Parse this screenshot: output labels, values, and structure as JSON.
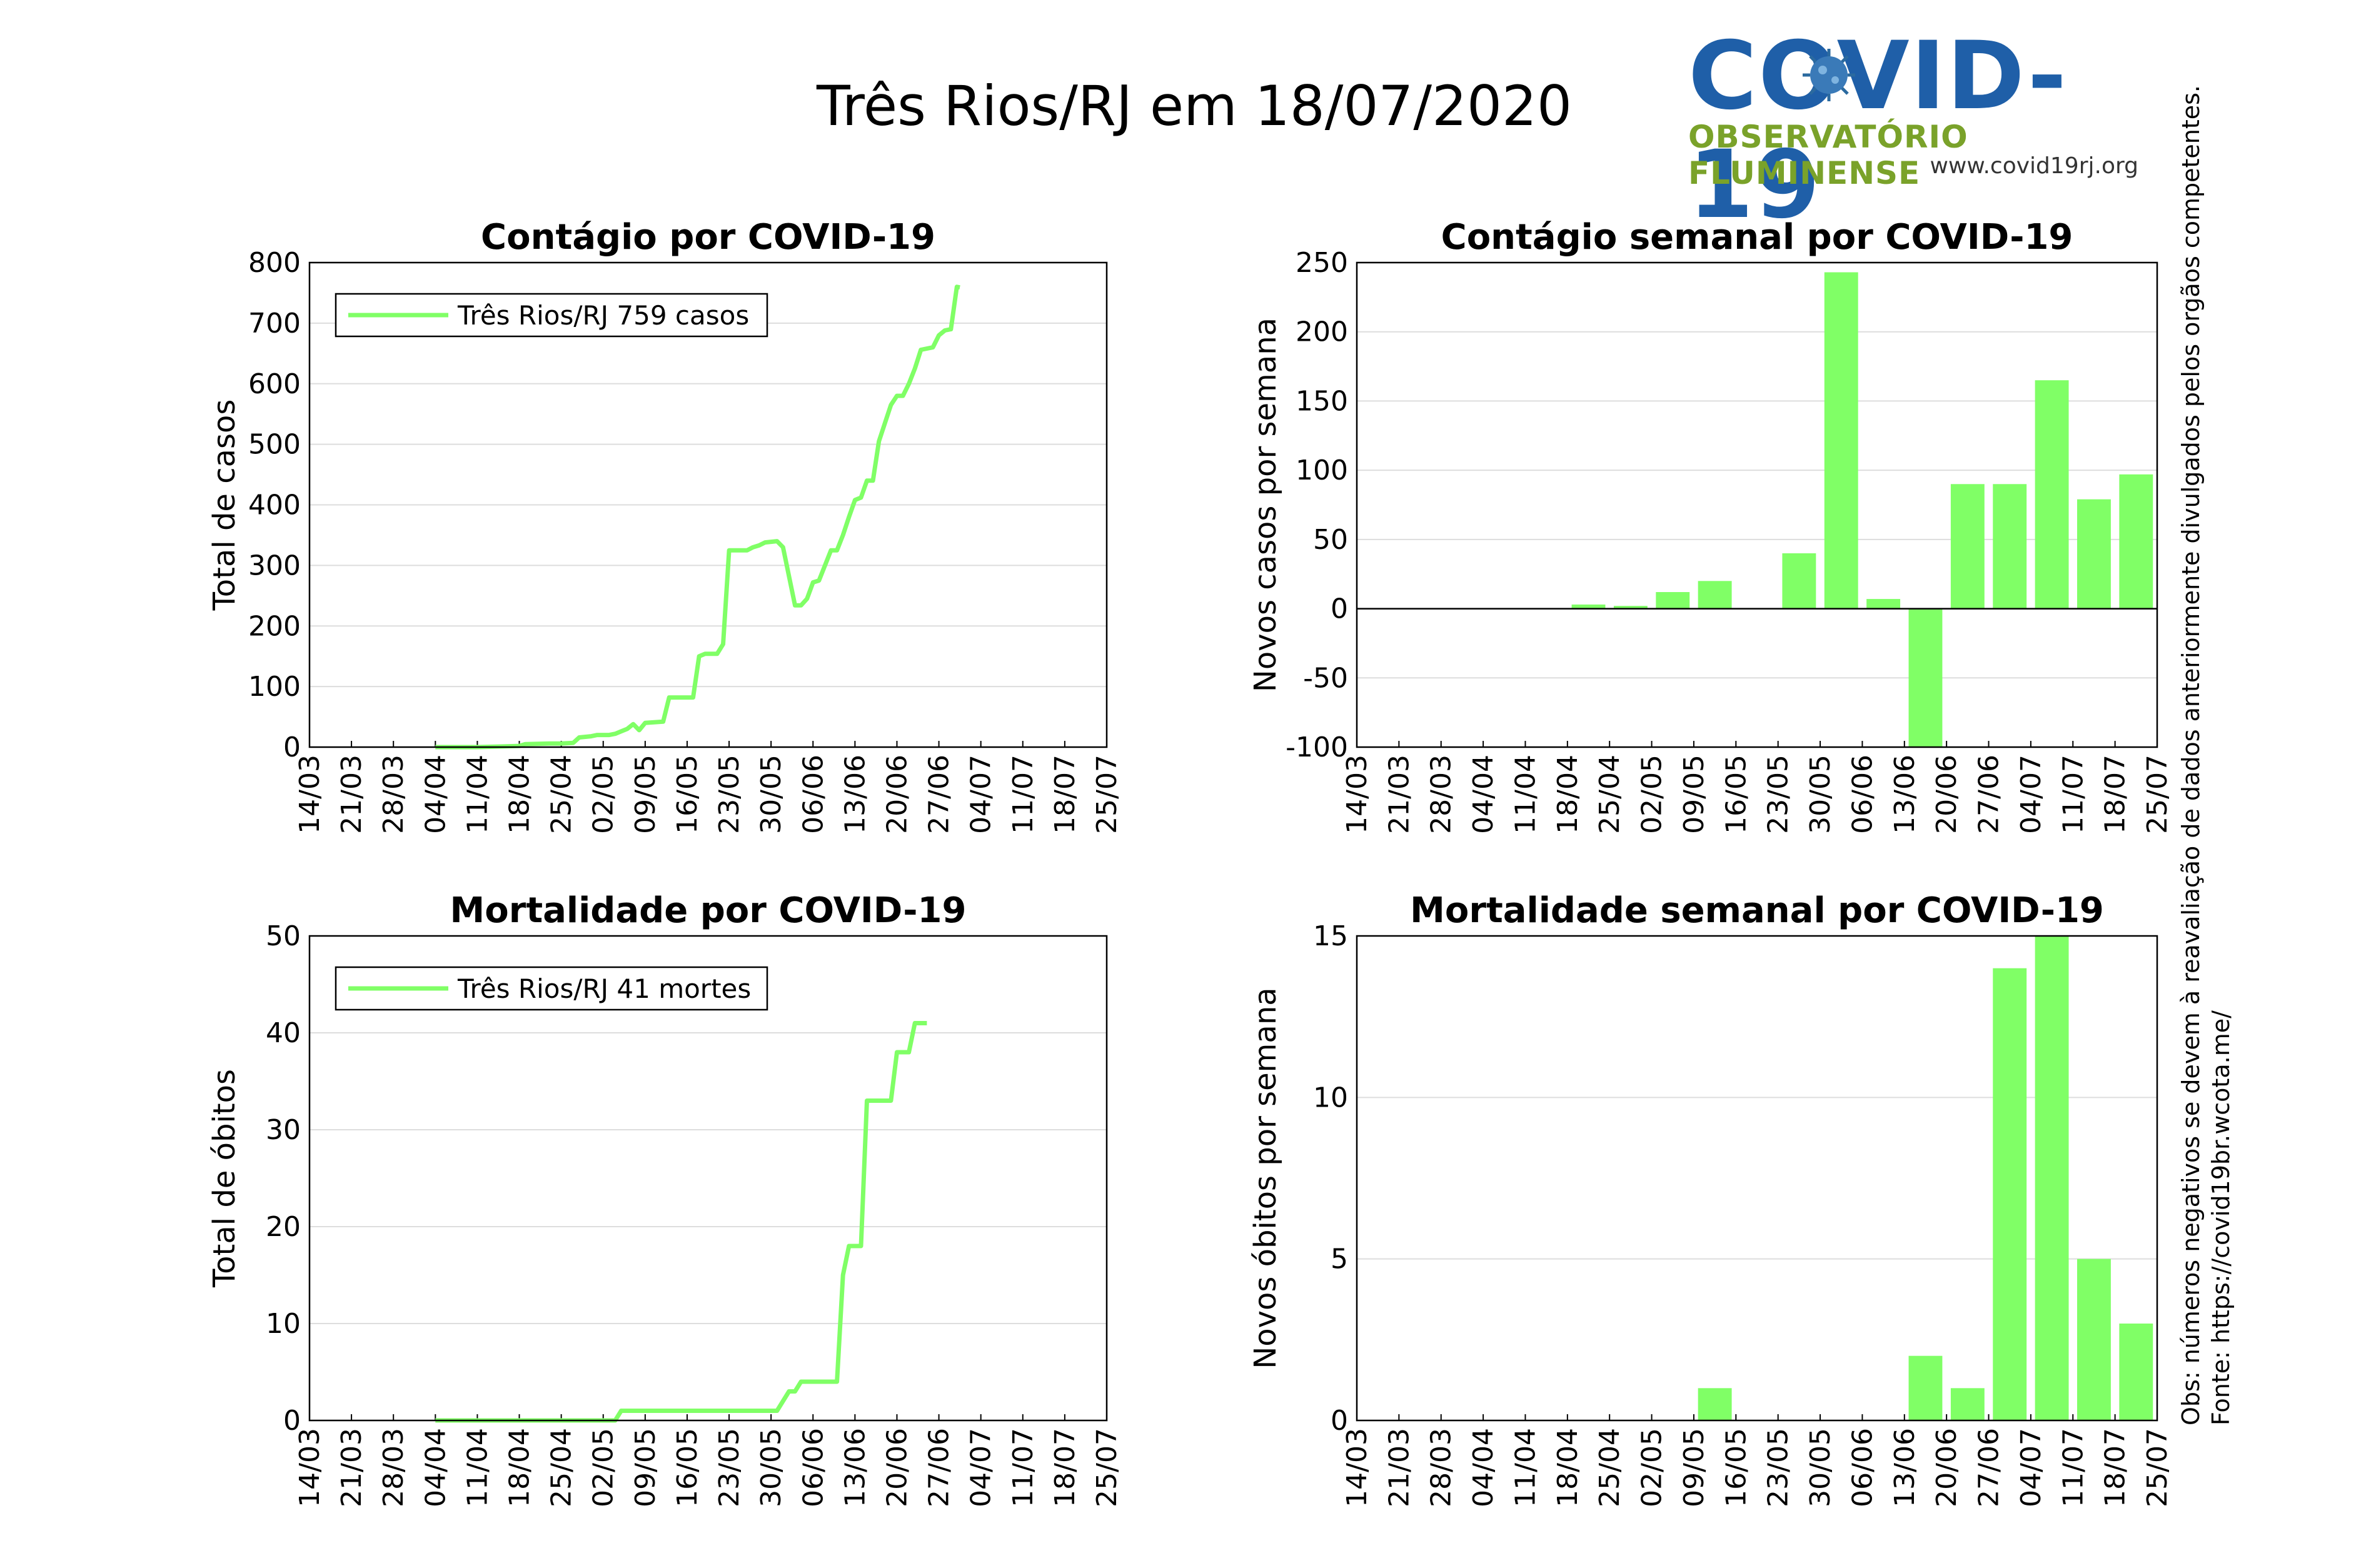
{
  "header": {
    "title": "Três Rios/RJ em 18/07/2020"
  },
  "logo": {
    "text": "COVID-19",
    "subtitle": "OBSERVATÓRIO FLUMINENSE",
    "url": "www.covid19rj.org"
  },
  "side_note": {
    "source": "Fonte: https://covid19br.wcota.me/",
    "obs": "Obs: números negativos se devem à reavaliação de dados anteriormente divulgados pelos orgãos competentes."
  },
  "colors": {
    "series": "#80ff66",
    "bar": "#80ff66",
    "grid": "#dddddd",
    "axis": "#000000"
  },
  "chart_data": [
    {
      "id": "cases-total",
      "type": "line",
      "title": "Contágio por COVID-19",
      "xlabel": "",
      "ylabel": "Total de casos",
      "ylim": [
        0,
        800
      ],
      "yticks": [
        0,
        100,
        200,
        300,
        400,
        500,
        600,
        700,
        800
      ],
      "xtick_labels": [
        "14/03",
        "21/03",
        "28/03",
        "04/04",
        "11/04",
        "18/04",
        "25/04",
        "02/05",
        "09/05",
        "16/05",
        "23/05",
        "30/05",
        "06/06",
        "13/06",
        "20/06",
        "27/06",
        "04/07",
        "11/07",
        "18/07",
        "25/07"
      ],
      "grid": true,
      "legend": "top-left",
      "series": [
        {
          "name": "Três Rios/RJ  759 casos",
          "points": [
            [
              21,
              0
            ],
            [
              28,
              0
            ],
            [
              32,
              1
            ],
            [
              35,
              2
            ],
            [
              36,
              5
            ],
            [
              40,
              6
            ],
            [
              42,
              6
            ],
            [
              44,
              7
            ],
            [
              45,
              16
            ],
            [
              47,
              18
            ],
            [
              48,
              20
            ],
            [
              50,
              20
            ],
            [
              51,
              22
            ],
            [
              52,
              26
            ],
            [
              53,
              30
            ],
            [
              54,
              38
            ],
            [
              55,
              28
            ],
            [
              56,
              40
            ],
            [
              59,
              42
            ],
            [
              60,
              82
            ],
            [
              64,
              82
            ],
            [
              65,
              150
            ],
            [
              66,
              154
            ],
            [
              68,
              154
            ],
            [
              69,
              170
            ],
            [
              70,
              325
            ],
            [
              73,
              325
            ],
            [
              74,
              330
            ],
            [
              75,
              333
            ],
            [
              76,
              338
            ],
            [
              78,
              340
            ],
            [
              79,
              330
            ],
            [
              81,
              234
            ],
            [
              82,
              234
            ],
            [
              83,
              245
            ],
            [
              84,
              272
            ],
            [
              85,
              275
            ],
            [
              86,
              300
            ],
            [
              87,
              325
            ],
            [
              88,
              325
            ],
            [
              89,
              350
            ],
            [
              90,
              380
            ],
            [
              91,
              408
            ],
            [
              92,
              412
            ],
            [
              93,
              440
            ],
            [
              94,
              440
            ],
            [
              95,
              505
            ],
            [
              96,
              535
            ],
            [
              97,
              565
            ],
            [
              98,
              580
            ],
            [
              99,
              580
            ],
            [
              100,
              600
            ],
            [
              101,
              625
            ],
            [
              102,
              656
            ],
            [
              104,
              660
            ],
            [
              105,
              680
            ],
            [
              106,
              688
            ],
            [
              107,
              690
            ],
            [
              108,
              760
            ],
            [
              108.5,
              759
            ]
          ]
        }
      ]
    },
    {
      "id": "cases-weekly",
      "type": "bar",
      "title": "Contágio semanal por COVID-19",
      "xlabel": "",
      "ylabel": "Novos casos por semana",
      "ylim": [
        -100,
        250
      ],
      "yticks": [
        -100,
        -50,
        0,
        50,
        100,
        150,
        200,
        250
      ],
      "xtick_labels": [
        "14/03",
        "21/03",
        "28/03",
        "04/04",
        "11/04",
        "18/04",
        "25/04",
        "02/05",
        "09/05",
        "16/05",
        "23/05",
        "30/05",
        "06/06",
        "13/06",
        "20/06",
        "27/06",
        "04/07",
        "11/07",
        "18/07",
        "25/07"
      ],
      "grid": true,
      "values": [
        0,
        0,
        0,
        0,
        0,
        3,
        2,
        12,
        20,
        0,
        40,
        243,
        7,
        -105,
        90,
        90,
        165,
        79,
        97,
        0
      ]
    },
    {
      "id": "deaths-total",
      "type": "line",
      "title": "Mortalidade por COVID-19",
      "xlabel": "",
      "ylabel": "Total de óbitos",
      "ylim": [
        0,
        50
      ],
      "yticks": [
        0,
        10,
        20,
        30,
        40,
        50
      ],
      "xtick_labels": [
        "14/03",
        "21/03",
        "28/03",
        "04/04",
        "11/04",
        "18/04",
        "25/04",
        "02/05",
        "09/05",
        "16/05",
        "23/05",
        "30/05",
        "06/06",
        "13/06",
        "20/06",
        "27/06",
        "04/07",
        "11/07",
        "18/07",
        "25/07"
      ],
      "grid": true,
      "legend": "top-left",
      "series": [
        {
          "name": "Três Rios/RJ  41 mortes",
          "points": [
            [
              21,
              0
            ],
            [
              51,
              0
            ],
            [
              52,
              1
            ],
            [
              77,
              1
            ],
            [
              78,
              1
            ],
            [
              79,
              2
            ],
            [
              80,
              3
            ],
            [
              81,
              3
            ],
            [
              82,
              4
            ],
            [
              83,
              4
            ],
            [
              88,
              4
            ],
            [
              89,
              15
            ],
            [
              90,
              18
            ],
            [
              92,
              18
            ],
            [
              93,
              33
            ],
            [
              97,
              33
            ],
            [
              98,
              38
            ],
            [
              100,
              38
            ],
            [
              101,
              41
            ],
            [
              103,
              41
            ]
          ]
        }
      ]
    },
    {
      "id": "deaths-weekly",
      "type": "bar",
      "title": "Mortalidade semanal por COVID-19",
      "xlabel": "",
      "ylabel": "Novos óbitos por semana",
      "ylim": [
        0,
        15
      ],
      "yticks": [
        0,
        5,
        10,
        15
      ],
      "xtick_labels": [
        "14/03",
        "21/03",
        "28/03",
        "04/04",
        "11/04",
        "18/04",
        "25/04",
        "02/05",
        "09/05",
        "16/05",
        "23/05",
        "30/05",
        "06/06",
        "13/06",
        "20/06",
        "27/06",
        "04/07",
        "11/07",
        "18/07",
        "25/07"
      ],
      "grid": true,
      "values": [
        0,
        0,
        0,
        0,
        0,
        0,
        0,
        0,
        1,
        0,
        0,
        0,
        0,
        2,
        1,
        14,
        15,
        5,
        3,
        0
      ]
    }
  ]
}
